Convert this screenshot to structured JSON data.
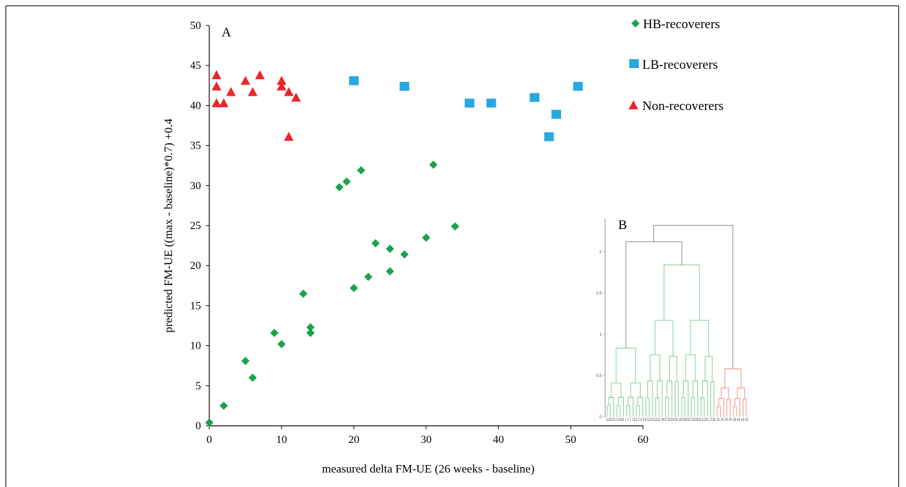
{
  "chart_data": [
    {
      "type": "scatter",
      "panel_label": "A",
      "xlabel": "measured delta FM-UE (26 weeks - baseline)",
      "ylabel": "predicted FM-UE ((max - baseline)*0.7) +0.4",
      "xlim": [
        0,
        60
      ],
      "ylim": [
        0,
        50
      ],
      "xticks": [
        "0",
        "10",
        "20",
        "30",
        "40",
        "50",
        "60"
      ],
      "yticks": [
        "0",
        "5",
        "10",
        "15",
        "20",
        "25",
        "30",
        "35",
        "40",
        "45",
        "50"
      ],
      "grid": false,
      "legend_position": "top-right",
      "series": [
        {
          "name": "HB-recoverers",
          "marker": "diamond",
          "color": "#1aa34a",
          "points": [
            [
              0,
              0.4
            ],
            [
              2,
              2.5
            ],
            [
              5,
              8.1
            ],
            [
              6,
              6
            ],
            [
              9,
              11.6
            ],
            [
              10,
              10.2
            ],
            [
              13,
              16.5
            ],
            [
              14,
              12.3
            ],
            [
              14,
              11.6
            ],
            [
              18,
              29.8
            ],
            [
              19,
              30.5
            ],
            [
              20,
              17.2
            ],
            [
              21,
              31.9
            ],
            [
              22,
              18.6
            ],
            [
              23,
              22.8
            ],
            [
              25,
              22.1
            ],
            [
              25,
              19.3
            ],
            [
              27,
              21.4
            ],
            [
              30,
              23.5
            ],
            [
              31,
              32.6
            ],
            [
              34,
              24.9
            ]
          ]
        },
        {
          "name": "LB-recoverers",
          "marker": "square",
          "color": "#29a8e0",
          "points": [
            [
              20,
              43.1
            ],
            [
              27,
              42.4
            ],
            [
              36,
              40.3
            ],
            [
              39,
              40.3
            ],
            [
              45,
              41
            ],
            [
              47,
              36.1
            ],
            [
              48,
              38.9
            ],
            [
              51,
              42.4
            ]
          ]
        },
        {
          "name": "Non-recoverers",
          "marker": "triangle",
          "color": "#e8282b",
          "points": [
            [
              1,
              43.8
            ],
            [
              1,
              42.4
            ],
            [
              1,
              40.3
            ],
            [
              2,
              40.3
            ],
            [
              3,
              41.7
            ],
            [
              5,
              43.1
            ],
            [
              6,
              41.7
            ],
            [
              7,
              43.8
            ],
            [
              10,
              43.1
            ],
            [
              10,
              42.4
            ],
            [
              11,
              41.7
            ],
            [
              11,
              36.1
            ],
            [
              12,
              41
            ]
          ]
        }
      ]
    },
    {
      "type": "dendrogram",
      "panel_label": "B",
      "ylim": [
        0,
        2.4
      ],
      "yticks": [
        "0",
        "0.5",
        "1",
        "1.5",
        "2"
      ],
      "leaf_labels": "222021 9 618 1 3 7 153 2 4 81012151113 9417202425 182930271926313228 1736 33 35 34 40 38 44 43 42",
      "clusters": [
        {
          "name": "green",
          "color": "#7bc98a"
        },
        {
          "name": "red",
          "color": "#ee8a72"
        }
      ],
      "link_color": "#808080"
    }
  ]
}
